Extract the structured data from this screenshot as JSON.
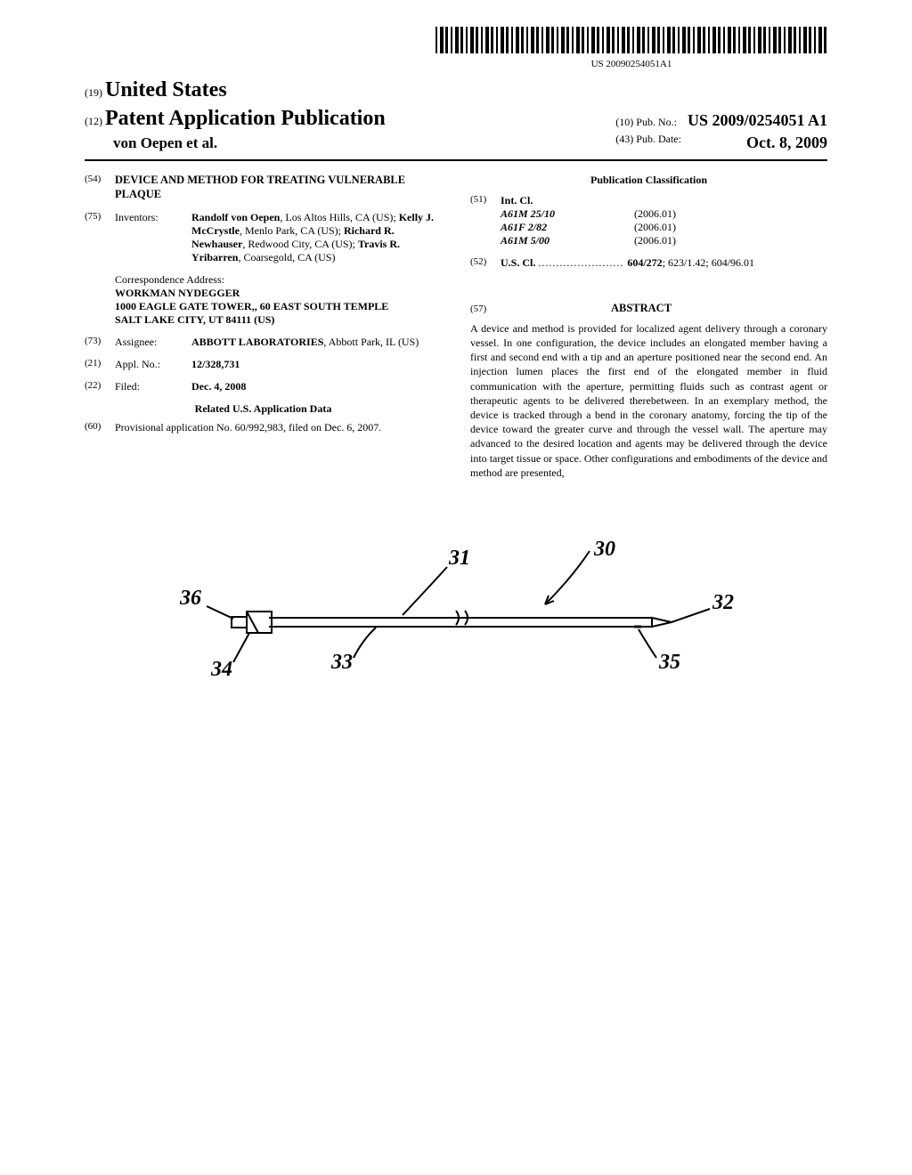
{
  "barcode_text": "US 20090254051A1",
  "header": {
    "country_code": "(19)",
    "country": "United States",
    "doc_type_code": "(12)",
    "doc_type": "Patent Application Publication",
    "authors": "von Oepen et al.",
    "pubno_code": "(10)",
    "pubno_label": "Pub. No.:",
    "pubno_value": "US 2009/0254051 A1",
    "pubdate_code": "(43)",
    "pubdate_label": "Pub. Date:",
    "pubdate_value": "Oct. 8, 2009"
  },
  "title_code": "(54)",
  "title": "DEVICE AND METHOD FOR TREATING VULNERABLE PLAQUE",
  "inventors_code": "(75)",
  "inventors_label": "Inventors:",
  "inventors": [
    {
      "name": "Randolf von Oepen",
      "loc": ", Los Altos Hills, CA (US); "
    },
    {
      "name": "Kelly J. McCrystle",
      "loc": ", Menlo Park, CA (US); "
    },
    {
      "name": "Richard R. Newhauser",
      "loc": ", Redwood City, CA (US); "
    },
    {
      "name": "Travis R. Yribarren",
      "loc": ", Coarsegold, CA (US)"
    }
  ],
  "correspondence": {
    "label": "Correspondence Address:",
    "line1": "WORKMAN NYDEGGER",
    "line2": "1000 EAGLE GATE TOWER,, 60 EAST SOUTH TEMPLE",
    "line3": "SALT LAKE CITY, UT 84111 (US)"
  },
  "assignee_code": "(73)",
  "assignee_label": "Assignee:",
  "assignee_name": "ABBOTT LABORATORIES",
  "assignee_loc": ", Abbott Park, IL (US)",
  "applno_code": "(21)",
  "applno_label": "Appl. No.:",
  "applno_value": "12/328,731",
  "filed_code": "(22)",
  "filed_label": "Filed:",
  "filed_value": "Dec. 4, 2008",
  "related_header": "Related U.S. Application Data",
  "provisional_code": "(60)",
  "provisional_text": "Provisional application No. 60/992,983, filed on Dec. 6, 2007.",
  "pub_class_header": "Publication Classification",
  "intcl_code": "(51)",
  "intcl_label": "Int. Cl.",
  "intcl": [
    {
      "code": "A61M 25/10",
      "year": "(2006.01)"
    },
    {
      "code": "A61F 2/82",
      "year": "(2006.01)"
    },
    {
      "code": "A61M 5/00",
      "year": "(2006.01)"
    }
  ],
  "uscl_code": "(52)",
  "uscl_label": "U.S. Cl.",
  "uscl_value": "604/272; 623/1.42; 604/96.01",
  "uscl_bold": "604/272",
  "abstract_code": "(57)",
  "abstract_header": "ABSTRACT",
  "abstract_text": "A device and method is provided for localized agent delivery through a coronary vessel. In one configuration, the device includes an elongated member having a first and second end with a tip and an aperture positioned near the second end. An injection lumen places the first end of the elongated member in fluid communication with the aperture, permitting fluids such as contrast agent or therapeutic agents to be delivered therebetween. In an exemplary method, the device is tracked through a bend in the coronary anatomy, forcing the tip of the device toward the greater curve and through the vessel wall. The aperture may advanced to the desired location and agents may be delivered through the device into target tissue or space. Other configurations and embodiments of the device and method are presented,",
  "figure": {
    "labels": {
      "l30": "30",
      "l31": "31",
      "l32": "32",
      "l33": "33",
      "l34": "34",
      "l35": "35",
      "l36": "36"
    },
    "stroke": "#000000",
    "stroke_width": 2
  }
}
